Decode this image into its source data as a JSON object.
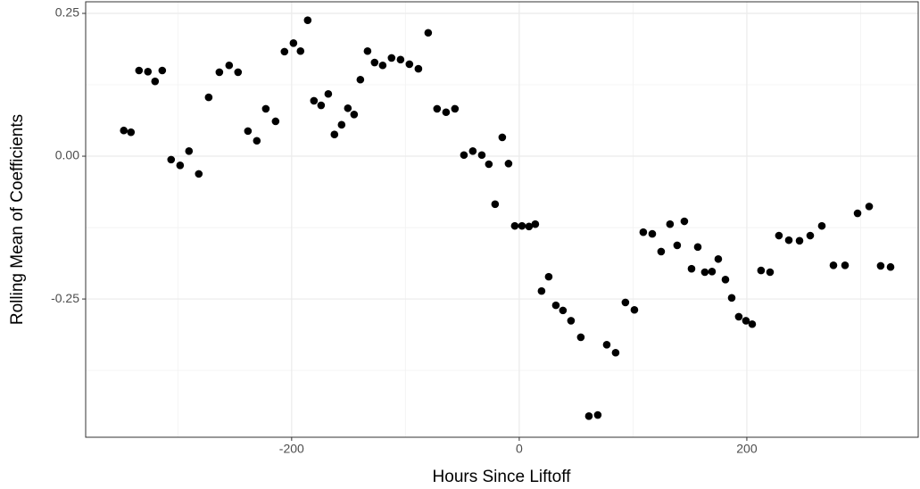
{
  "chart_data": {
    "type": "scatter",
    "x_label": "Hours Since Liftoff",
    "y_label": "Rolling Mean of Coefficients",
    "color": "#000000",
    "grid": true,
    "xlim": [
      -381,
      350.6
    ],
    "ylim": [
      -0.492,
      0.2703
    ],
    "xticks": [
      -200,
      0,
      200
    ],
    "yticks": [
      0.25,
      {
        "value": 0,
        "label": "0.00"
      },
      -0.25
    ],
    "xminor": [
      -300,
      -100,
      100,
      300
    ],
    "yminor": [
      0.125,
      -0.125,
      -0.375
    ],
    "x": [
      -347.5,
      -341.2,
      -334.1,
      -326.3,
      -320,
      -313.7,
      -305.9,
      -298,
      -290.2,
      -281.6,
      -272.9,
      -263.5,
      -254.9,
      -247.1,
      -238.4,
      -230.6,
      -222.7,
      -214.1,
      -206.3,
      -198.4,
      -192.2,
      -185.9,
      -180.4,
      -174.1,
      -167.8,
      -162.4,
      -156.1,
      -150.6,
      -145.1,
      -139.6,
      -133.3,
      -127.1,
      -120,
      -112.2,
      -104.3,
      -96.5,
      -88.6,
      -80,
      -72.2,
      -64.3,
      -56.5,
      -48.6,
      -40.8,
      -32.9,
      -26.7,
      -21.2,
      -14.9,
      -9.4,
      -3.9,
      2.4,
      8.6,
      14.1,
      19.6,
      25.9,
      32.2,
      38.4,
      45.5,
      54.1,
      61.2,
      69,
      76.9,
      84.7,
      93.3,
      101.2,
      109,
      116.9,
      124.7,
      132.5,
      138.8,
      145.1,
      151.4,
      156.9,
      163.1,
      169.4,
      174.9,
      181.2,
      186.7,
      192.9,
      199.2,
      204.7,
      212.5,
      220.4,
      228.2,
      236.9,
      246.3,
      255.7,
      265.9,
      276.1,
      286.3,
      297.3,
      307.5,
      317.6,
      326.3
    ],
    "values": [
      0.045,
      0.042,
      0.15,
      0.148,
      0.131,
      0.15,
      -0.006,
      -0.016,
      0.009,
      -0.031,
      0.103,
      0.147,
      0.159,
      0.147,
      0.044,
      0.027,
      0.083,
      0.061,
      0.183,
      0.198,
      0.184,
      0.238,
      0.097,
      0.089,
      0.109,
      0.038,
      0.055,
      0.084,
      0.073,
      0.134,
      0.184,
      0.164,
      0.159,
      0.172,
      0.169,
      0.161,
      0.153,
      0.216,
      0.083,
      0.077,
      0.083,
      0.002,
      0.009,
      0.002,
      -0.014,
      -0.084,
      0.033,
      -0.013,
      -0.122,
      -0.122,
      -0.123,
      -0.119,
      -0.236,
      -0.211,
      -0.261,
      -0.27,
      -0.288,
      -0.317,
      -0.455,
      -0.453,
      -0.33,
      -0.344,
      -0.256,
      -0.269,
      -0.133,
      -0.136,
      -0.167,
      -0.119,
      -0.156,
      -0.114,
      -0.197,
      -0.159,
      -0.203,
      -0.202,
      -0.18,
      -0.216,
      -0.248,
      -0.281,
      -0.288,
      -0.294,
      -0.2,
      -0.203,
      -0.139,
      -0.147,
      -0.148,
      -0.139,
      -0.122,
      -0.191,
      -0.191,
      -0.1,
      -0.088,
      -0.192,
      -0.194
    ]
  }
}
